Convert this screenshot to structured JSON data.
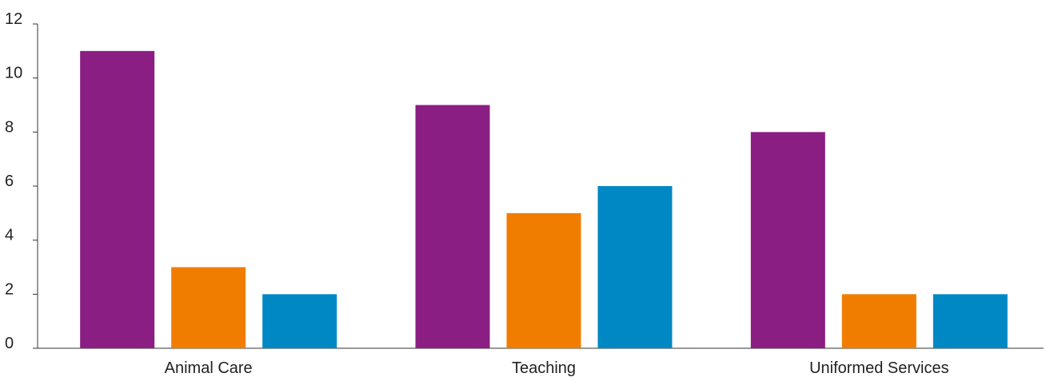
{
  "chart_data": {
    "type": "bar",
    "title": "",
    "xlabel": "",
    "ylabel": "",
    "categories": [
      "Animal Care",
      "Teaching",
      "Uniformed Services"
    ],
    "series": [
      {
        "values": [
          11,
          9,
          8
        ],
        "color": "#8B1E82"
      },
      {
        "values": [
          3,
          5,
          2
        ],
        "color": "#F07D00"
      },
      {
        "values": [
          2,
          6,
          2
        ],
        "color": "#0088C4"
      }
    ],
    "ylim": [
      0,
      12
    ],
    "yticks": [
      0,
      2,
      4,
      6,
      8,
      10,
      12
    ],
    "grid": false,
    "legend": "none"
  }
}
